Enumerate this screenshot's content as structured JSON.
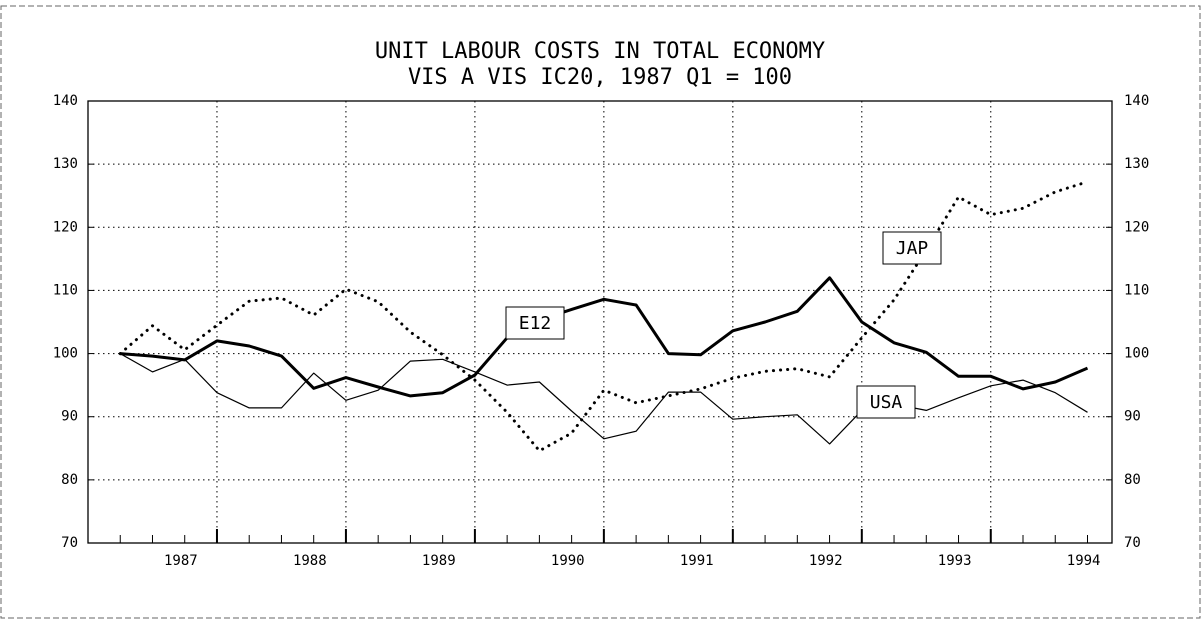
{
  "chart_data": {
    "type": "line",
    "title": "UNIT LABOUR COSTS IN TOTAL ECONOMY",
    "subtitle": "VIS A VIS IC20, 1987 Q1 = 100",
    "x": [
      1987,
      1987.25,
      1987.5,
      1987.75,
      1988,
      1988.25,
      1988.5,
      1988.75,
      1989,
      1989.25,
      1989.5,
      1989.75,
      1990,
      1990.25,
      1990.5,
      1990.75,
      1991,
      1991.25,
      1991.5,
      1991.75,
      1992,
      1992.25,
      1992.5,
      1992.75,
      1993,
      1993.25,
      1993.5,
      1993.75,
      1994,
      1994.25,
      1994.5
    ],
    "series": [
      {
        "name": "E12",
        "color": "#000000",
        "linestyle": "thick",
        "values": [
          100,
          99.6,
          99,
          102,
          101.2,
          99.6,
          94.5,
          96.2,
          94.7,
          93.3,
          93.8,
          96.6,
          102.5,
          105.3,
          107,
          108.6,
          107.7,
          100,
          99.8,
          103.6,
          105,
          106.7,
          112,
          105,
          101.7,
          100.2,
          96.4,
          96.4,
          94.4,
          95.5,
          97.7
        ]
      },
      {
        "name": "USA",
        "color": "#000000",
        "linestyle": "thin",
        "values": [
          100,
          97.1,
          99.1,
          93.8,
          91.4,
          91.4,
          96.9,
          92.6,
          94.2,
          98.8,
          99.1,
          97.1,
          95,
          95.5,
          90.9,
          86.5,
          87.7,
          93.9,
          93.9,
          89.6,
          90,
          90.3,
          85.7,
          91,
          92,
          91,
          93,
          94.9,
          95.8,
          93.8,
          90.7
        ]
      },
      {
        "name": "JAP",
        "color": "#000000",
        "linestyle": "dotted",
        "values": [
          100,
          104.4,
          100.6,
          104.5,
          108.3,
          108.8,
          106.1,
          110.2,
          108.2,
          103.4,
          99.8,
          95.8,
          90.7,
          84.6,
          87.4,
          94.2,
          92.2,
          93.3,
          94.4,
          96.1,
          97.2,
          97.6,
          96.3,
          102.5,
          108.5,
          116.4,
          124.8,
          122,
          123,
          125.6,
          127.2
        ]
      }
    ],
    "xlim": [
      1986.75,
      1994.69
    ],
    "xticks": [
      1987,
      1988,
      1989,
      1990,
      1991,
      1992,
      1993,
      1994
    ],
    "ylim": [
      70,
      140
    ],
    "yticks": [
      70,
      80,
      90,
      100,
      110,
      120,
      130,
      140
    ],
    "grid": true
  }
}
